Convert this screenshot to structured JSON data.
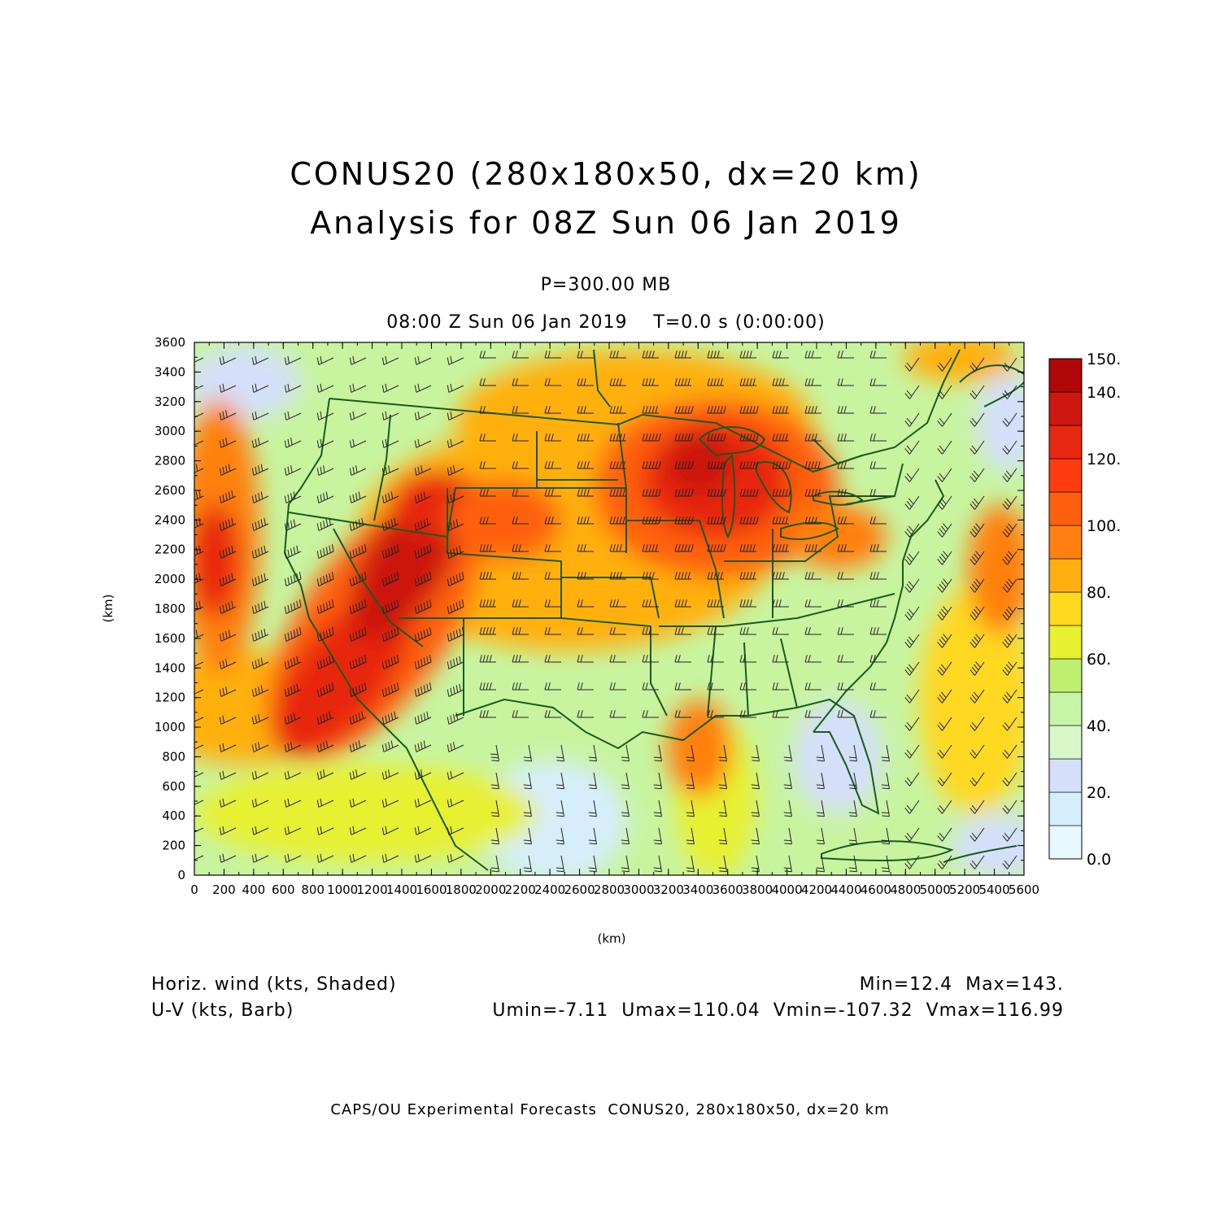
{
  "title": {
    "line1": "CONUS20 (280x180x50, dx=20 km)",
    "line2": "Analysis for 08Z Sun 06 Jan 2019"
  },
  "level_label": "P=300.00 MB",
  "time_label": "08:00 Z Sun 06 Jan 2019    T=0.0 s (0:00:00)",
  "axes": {
    "x_label": "(km)",
    "y_label": "(km)",
    "x_range": [
      0,
      5600
    ],
    "y_range": [
      0,
      3600
    ],
    "x_ticks": [
      "0",
      "200",
      "400",
      "600",
      "800",
      "1000",
      "1200",
      "1400",
      "1600",
      "1800",
      "2000",
      "2200",
      "2400",
      "2600",
      "2800",
      "3000",
      "3200",
      "3400",
      "3600",
      "3800",
      "4000",
      "4200",
      "4400",
      "4600",
      "4800",
      "5000",
      "5200",
      "5400",
      "5600"
    ],
    "y_ticks": [
      "0",
      "200",
      "400",
      "600",
      "800",
      "1000",
      "1200",
      "1400",
      "1600",
      "1800",
      "2000",
      "2200",
      "2400",
      "2600",
      "2800",
      "3000",
      "3200",
      "3400",
      "3600"
    ]
  },
  "colorbar": {
    "labels": [
      "0.0",
      "20.",
      "40.",
      "60.",
      "80.",
      "100.",
      "120.",
      "140.",
      "150."
    ],
    "colors": [
      "#e8f8ff",
      "#d6eefc",
      "#d4e0fa",
      "#d8f8c8",
      "#c8f4a8",
      "#c0f070",
      "#e8f030",
      "#ffd820",
      "#ffb010",
      "#ff8010",
      "#ff6010",
      "#ff3c10",
      "#e82810",
      "#cc1810",
      "#b00808"
    ]
  },
  "footer": {
    "left_top": "Horiz. wind (kts, Shaded)",
    "left_bottom": "U-V (kts, Barb)",
    "right_top": "Min=12.4  Max=143.",
    "right_bottom": "Umin=-7.11  Umax=110.04  Vmin=-107.32  Vmax=116.99"
  },
  "credit": "CAPS/OU Experimental Forecasts  CONUS20, 280x180x50, dx=20 km",
  "colors": {
    "boundary": "#1a5a1a",
    "frame": "#000000"
  }
}
